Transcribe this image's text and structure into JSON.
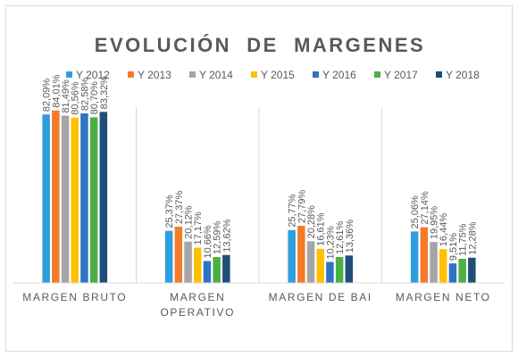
{
  "chart_data": {
    "type": "bar",
    "title": "EVOLUCIÓN  DE  MARGENES",
    "legend_position": "top",
    "grid": false,
    "categories": [
      [
        "MARGEN BRUTO"
      ],
      [
        "MARGEN",
        "OPERATIVO"
      ],
      [
        "MARGEN DE BAI"
      ],
      [
        "MARGEN NETO"
      ]
    ],
    "ylim": [
      0,
      100
    ],
    "series": [
      {
        "name": "Y 2012",
        "color": "#2e9fde",
        "values": [
          82.09,
          25.37,
          25.77,
          25.06
        ],
        "labels": [
          "82,09%",
          "25,37%",
          "25,77%",
          "25,06%"
        ]
      },
      {
        "name": "Y 2013",
        "color": "#f47b2a",
        "values": [
          84.01,
          27.37,
          27.79,
          27.14
        ],
        "labels": [
          "84,01%",
          "27,37%",
          "27,79%",
          "27,14%"
        ]
      },
      {
        "name": "Y 2014",
        "color": "#a5a5a5",
        "values": [
          81.49,
          20.12,
          20.28,
          19.95
        ],
        "labels": [
          "81,49%",
          "20,12%",
          "20,28%",
          "19,95%"
        ]
      },
      {
        "name": "Y 2015",
        "color": "#ffc000",
        "values": [
          80.56,
          17.17,
          16.61,
          16.44
        ],
        "labels": [
          "80,56%",
          "17,17%",
          "16,61%",
          "16,44%"
        ]
      },
      {
        "name": "Y 2016",
        "color": "#2f73c4",
        "values": [
          82.58,
          10.66,
          10.23,
          9.51
        ],
        "labels": [
          "82,58%",
          "10,66%",
          "10,23%",
          "9,51%"
        ]
      },
      {
        "name": "Y 2017",
        "color": "#4caf45",
        "values": [
          80.7,
          12.59,
          12.61,
          11.75
        ],
        "labels": [
          "80,70%",
          "12,59%",
          "12,61%",
          "11,75%"
        ]
      },
      {
        "name": "Y 2018",
        "color": "#1f4e79",
        "values": [
          83.32,
          13.62,
          13.36,
          12.28
        ],
        "labels": [
          "83,32%",
          "13,62%",
          "13,36%",
          "12,28%"
        ]
      }
    ]
  }
}
